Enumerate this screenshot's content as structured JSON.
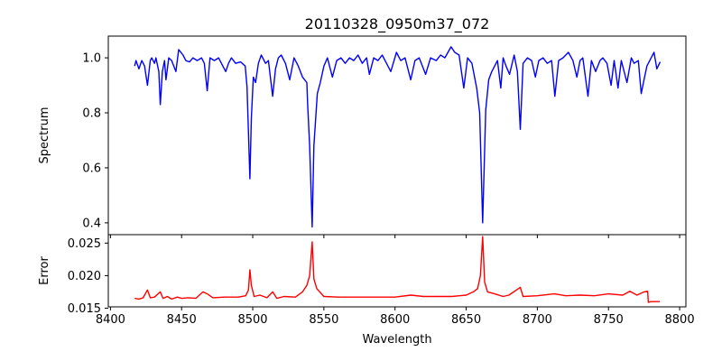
{
  "chart_data": [
    {
      "type": "line",
      "title": "20110328_0950m37_072",
      "xlabel": "",
      "ylabel": "Spectrum",
      "xlim": [
        8398.5,
        8804.4
      ],
      "ylim": [
        0.357,
        1.079
      ],
      "xticks": [
        8400,
        8450,
        8500,
        8550,
        8600,
        8650,
        8700,
        8750,
        8800
      ],
      "yticks": [
        0.4,
        0.6,
        0.8,
        1.0
      ],
      "ytick_labels": [
        "0.4",
        "0.6",
        "0.8",
        "1.0"
      ],
      "color": "#0000ff",
      "series": [
        {
          "name": "Spectrum",
          "x": [
            8417,
            8418,
            8420,
            8422,
            8424,
            8426,
            8428,
            8429,
            8431,
            8432,
            8434,
            8435,
            8436.5,
            8438,
            8439,
            8441,
            8443,
            8446,
            8448,
            8451,
            8453,
            8455.6,
            8458,
            8461,
            8464,
            8466,
            8468,
            8470,
            8473,
            8476,
            8479,
            8481,
            8483,
            8485,
            8488,
            8491.5,
            8494.7,
            8496,
            8498,
            8499,
            8500.4,
            8502,
            8504,
            8506,
            8509,
            8511,
            8514,
            8516,
            8518,
            8520,
            8523,
            8526,
            8529,
            8532,
            8535,
            8538,
            8538.6,
            8540,
            8541.8,
            8543,
            8545.4,
            8547.5,
            8550,
            8552.5,
            8556,
            8559,
            8562,
            8565,
            8568,
            8571,
            8574,
            8577,
            8580,
            8582,
            8585,
            8588,
            8591,
            8594,
            8597,
            8601,
            8604,
            8607,
            8611,
            8614,
            8617,
            8621.5,
            8625,
            8629,
            8632,
            8635,
            8639.4,
            8642,
            8645,
            8648.3,
            8651,
            8654,
            8657.4,
            8659.5,
            8661.6,
            8663.7,
            8665.8,
            8668,
            8670,
            8672,
            8674.3,
            8676,
            8678,
            8680.5,
            8683.7,
            8686,
            8688,
            8690,
            8693,
            8696,
            8698.6,
            8701,
            8704,
            8707,
            8710,
            8712.3,
            8715,
            8718,
            8721.8,
            8725,
            8727.8,
            8730,
            8732,
            8735.6,
            8738,
            8741,
            8744,
            8746,
            8749,
            8751.8,
            8754,
            8756.7,
            8759,
            8763,
            8766,
            8768,
            8771,
            8773,
            8775,
            8777,
            8780,
            8782,
            8784,
            8786.3
          ],
          "y": [
            0.97,
            0.99,
            0.96,
            0.99,
            0.97,
            0.9,
            0.99,
            1.0,
            0.98,
            1.0,
            0.95,
            0.83,
            0.95,
            0.99,
            0.92,
            1.0,
            0.99,
            0.95,
            1.03,
            1.01,
            0.99,
            0.985,
            1.0,
            0.99,
            1.0,
            0.98,
            0.88,
            1.0,
            0.99,
            1.0,
            0.97,
            0.95,
            0.98,
            1.0,
            0.98,
            0.985,
            0.97,
            0.895,
            0.56,
            0.78,
            0.93,
            0.91,
            0.98,
            1.01,
            0.98,
            0.99,
            0.86,
            0.96,
            1.0,
            1.01,
            0.98,
            0.92,
            1.0,
            0.97,
            0.93,
            0.91,
            0.83,
            0.68,
            0.385,
            0.68,
            0.87,
            0.91,
            0.97,
            1.0,
            0.93,
            0.99,
            1.0,
            0.98,
            1.0,
            0.99,
            1.01,
            0.98,
            1.0,
            0.94,
            1.0,
            0.99,
            1.01,
            0.98,
            0.95,
            1.02,
            0.99,
            1.0,
            0.92,
            0.99,
            1.0,
            0.94,
            1.0,
            0.99,
            1.01,
            1.0,
            1.04,
            1.02,
            1.01,
            0.89,
            1.0,
            0.98,
            0.89,
            0.8,
            0.4,
            0.81,
            0.92,
            0.95,
            0.97,
            0.99,
            0.89,
            1.0,
            0.97,
            0.94,
            1.01,
            0.95,
            0.74,
            0.98,
            1.0,
            0.99,
            0.93,
            0.99,
            1.0,
            0.98,
            0.99,
            0.86,
            0.99,
            1.0,
            1.02,
            0.99,
            0.93,
            0.99,
            1.0,
            0.86,
            0.99,
            0.95,
            0.99,
            1.0,
            0.98,
            0.9,
            0.99,
            0.89,
            0.99,
            0.91,
            1.0,
            0.98,
            0.99,
            0.87,
            0.92,
            0.97,
            1.0,
            1.02,
            0.96,
            0.985
          ]
        }
      ]
    },
    {
      "type": "line",
      "title": "",
      "xlabel": "Wavelength",
      "ylabel": "Error",
      "xlim": [
        8398.5,
        8804.4
      ],
      "ylim": [
        0.0152,
        0.0263
      ],
      "xticks": [
        8400,
        8450,
        8500,
        8550,
        8600,
        8650,
        8700,
        8750,
        8800
      ],
      "xtick_labels": [
        "8400",
        "8450",
        "8500",
        "8550",
        "8600",
        "8650",
        "8700",
        "8750",
        "8800"
      ],
      "yticks": [
        0.015,
        0.02,
        0.025
      ],
      "ytick_labels": [
        "0.015",
        "0.020",
        "0.025"
      ],
      "color": "#ff0000",
      "series": [
        {
          "name": "Error",
          "x": [
            8417,
            8420,
            8423,
            8426,
            8428,
            8431,
            8435,
            8437,
            8440,
            8443,
            8447,
            8450,
            8455,
            8460,
            8465,
            8468,
            8472,
            8480,
            8490,
            8495,
            8497,
            8498,
            8499,
            8501,
            8505,
            8510,
            8514,
            8517,
            8522,
            8530,
            8535,
            8538,
            8540,
            8541.8,
            8543,
            8545,
            8550,
            8560,
            8580,
            8600,
            8611,
            8620,
            8640,
            8650,
            8655,
            8658,
            8660,
            8661.6,
            8663,
            8665,
            8670,
            8676,
            8680,
            8688,
            8690,
            8700,
            8712,
            8720,
            8730,
            8740,
            8750,
            8760,
            8765,
            8770,
            8775,
            8777.5,
            8778,
            8780,
            8786
          ],
          "y": [
            0.0165,
            0.0164,
            0.0166,
            0.0178,
            0.0166,
            0.0167,
            0.0175,
            0.0165,
            0.0168,
            0.0164,
            0.0167,
            0.0165,
            0.0166,
            0.0165,
            0.0175,
            0.0172,
            0.0166,
            0.0167,
            0.0167,
            0.0169,
            0.0178,
            0.0209,
            0.0185,
            0.0168,
            0.017,
            0.0166,
            0.0175,
            0.0165,
            0.0168,
            0.0167,
            0.0175,
            0.0185,
            0.02,
            0.0252,
            0.0195,
            0.018,
            0.0168,
            0.0167,
            0.0167,
            0.0167,
            0.017,
            0.0168,
            0.0168,
            0.017,
            0.0175,
            0.018,
            0.02,
            0.026,
            0.019,
            0.0175,
            0.0172,
            0.0168,
            0.017,
            0.0182,
            0.0168,
            0.0169,
            0.0172,
            0.0169,
            0.017,
            0.0169,
            0.0172,
            0.017,
            0.0176,
            0.017,
            0.0175,
            0.0176,
            0.0159,
            0.016,
            0.016
          ]
        }
      ]
    }
  ]
}
